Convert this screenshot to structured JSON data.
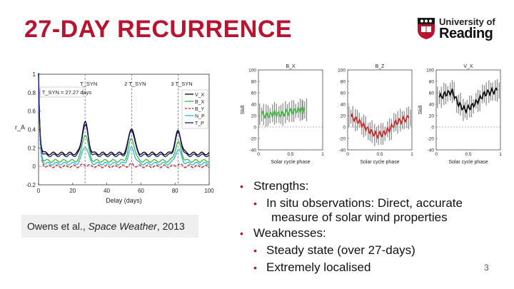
{
  "slide": {
    "title": "27-DAY RECURRENCE",
    "page_number": "3",
    "accent_color": "#b8132f"
  },
  "logo": {
    "line1": "University of",
    "line2": "Reading",
    "icon": "university-crest-icon"
  },
  "citation": {
    "authors": "Owens et al., ",
    "journal": "Space Weather",
    "year": ", 2013"
  },
  "bullets": {
    "strengths": "Strengths:",
    "insitu_1": "In situ observations: Direct, accurate",
    "insitu_2": "measure of solar wind properties",
    "weaknesses": "Weaknesses:",
    "steady": "Steady state (over 27-days)",
    "localised": "Extremely localised"
  },
  "chart_data": [
    {
      "type": "line",
      "title": "",
      "xlabel": "Delay (days)",
      "ylabel": "r_A",
      "xlim": [
        0,
        100
      ],
      "ylim": [
        -0.2,
        1.0
      ],
      "xticks": [
        0,
        20,
        40,
        60,
        80,
        100
      ],
      "yticks": [
        -0.2,
        0,
        0.2,
        0.4,
        0.6,
        0.8,
        1
      ],
      "vlines": [
        {
          "x": 27.27,
          "label": "T_SYN"
        },
        {
          "x": 54.54,
          "label": "2 T_SYN"
        },
        {
          "x": 81.81,
          "label": "3 T_SYN"
        }
      ],
      "annotation": "T_SYN = 27.27 days",
      "legend": [
        "V_X",
        "B_X",
        "B_Y",
        "N_P",
        "T_P"
      ],
      "series": [
        {
          "name": "V_X",
          "color": "#000000",
          "peak_values": [
            0.48,
            0.42,
            0.38
          ],
          "baseline": 0.14
        },
        {
          "name": "B_X",
          "color": "#3cb83c",
          "peak_values": [
            0.35,
            0.3,
            0.26
          ],
          "baseline": 0.06
        },
        {
          "name": "B_Y",
          "color": "#cc2222",
          "peak_values": [
            0.02,
            0.02,
            0.02
          ],
          "baseline": 0.0
        },
        {
          "name": "N_P",
          "color": "#22bbdd",
          "peak_values": [
            0.22,
            0.2,
            0.18
          ],
          "baseline": 0.03
        },
        {
          "name": "T_P",
          "color": "#1a1a7a",
          "peak_values": [
            0.45,
            0.4,
            0.36
          ],
          "baseline": 0.12
        }
      ]
    },
    {
      "type": "line",
      "title": "B_X",
      "xlabel": "Solar cycle phase",
      "ylabel": "Skill",
      "xlim": [
        0,
        1
      ],
      "ylim": [
        -40,
        100
      ],
      "xticks": [
        0,
        0.5,
        1
      ],
      "yticks": [
        -40,
        -20,
        0,
        20,
        40,
        60,
        80,
        100
      ],
      "color": "#3cb83c",
      "series": [
        {
          "name": "B_X",
          "x": [
            0.05,
            0.15,
            0.25,
            0.35,
            0.45,
            0.55,
            0.65,
            0.72
          ],
          "y": [
            22,
            20,
            24,
            22,
            26,
            28,
            30,
            30
          ]
        }
      ]
    },
    {
      "type": "line",
      "title": "B_Z",
      "xlabel": "Solar cycle phase",
      "ylabel": "",
      "xlim": [
        0,
        1
      ],
      "ylim": [
        -40,
        100
      ],
      "xticks": [
        0,
        0.5,
        1
      ],
      "yticks": [
        -40,
        -20,
        0,
        20,
        40,
        60,
        80,
        100
      ],
      "color": "#cc2222",
      "series": [
        {
          "name": "B_Z",
          "x": [
            0.05,
            0.15,
            0.25,
            0.35,
            0.45,
            0.55,
            0.65,
            0.75,
            0.85,
            0.95
          ],
          "y": [
            18,
            12,
            2,
            -8,
            -14,
            -12,
            -4,
            8,
            12,
            16
          ]
        }
      ]
    },
    {
      "type": "line",
      "title": "V_X",
      "xlabel": "Solar cycle phase",
      "ylabel": "Skill",
      "xlim": [
        0,
        1
      ],
      "ylim": [
        -40,
        100
      ],
      "xticks": [
        0,
        0.5,
        1
      ],
      "yticks": [
        -40,
        -20,
        0,
        20,
        40,
        60,
        80,
        100
      ],
      "color": "#000000",
      "series": [
        {
          "name": "V_X",
          "x": [
            0.05,
            0.15,
            0.25,
            0.35,
            0.45,
            0.55,
            0.65,
            0.75,
            0.85,
            0.95
          ],
          "y": [
            52,
            58,
            62,
            40,
            30,
            36,
            46,
            58,
            62,
            64
          ]
        }
      ]
    }
  ]
}
